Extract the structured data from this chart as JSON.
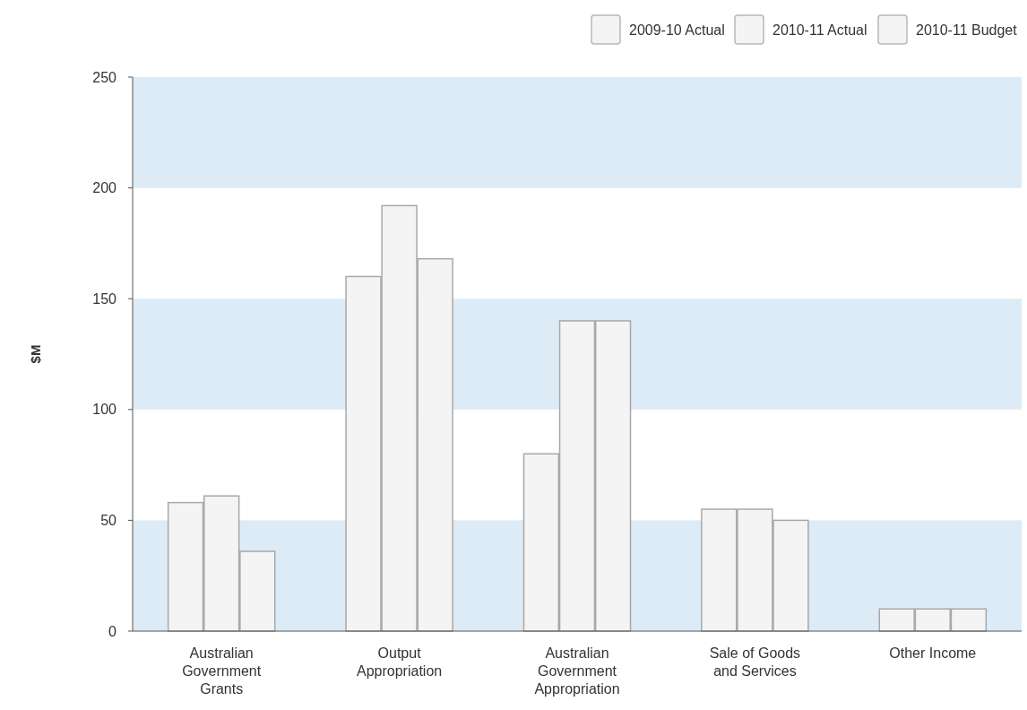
{
  "chart_data": {
    "type": "bar",
    "ylabel": "$M",
    "categories": [
      "Australian Government Grants",
      "Output Appropriation",
      "Australian Government Appropriation",
      "Sale of Goods and Services",
      "Other Income"
    ],
    "series": [
      {
        "name": "2009-10 Actual",
        "color": "#f4f4f4",
        "values": [
          58,
          160,
          80,
          55,
          10
        ]
      },
      {
        "name": "2010-11 Actual",
        "color": "#f4f4f4",
        "values": [
          61,
          192,
          140,
          55,
          10
        ]
      },
      {
        "name": "2010-11 Budget",
        "color": "#f4f4f4",
        "values": [
          36,
          168,
          140,
          50,
          10
        ]
      }
    ],
    "ylim": [
      0,
      250
    ],
    "yticks": [
      0,
      50,
      100,
      150,
      200,
      250
    ],
    "grid": false,
    "legend": "top right",
    "bands": [
      {
        "axis": "y",
        "from": 0,
        "to": 50,
        "color": "#dcebf6"
      },
      {
        "axis": "y",
        "from": 100,
        "to": 150,
        "color": "#dcebf6"
      },
      {
        "axis": "y",
        "from": 200,
        "to": 250,
        "color": "#dcebf6"
      }
    ]
  }
}
